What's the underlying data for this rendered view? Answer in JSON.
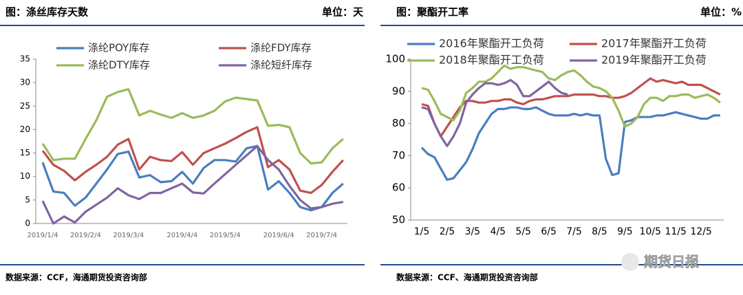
{
  "chart_data": [
    {
      "type": "line",
      "title": "图：涤丝库存天数",
      "unit": "单位：天",
      "source": "数据来源：CCF，海通期货投资咨询部",
      "categories": [
        "2019/1/4",
        null,
        null,
        null,
        "2019/2/4",
        null,
        null,
        null,
        "2019/3/4",
        null,
        null,
        null,
        null,
        "2019/4/4",
        null,
        null,
        null,
        "2019/5/4",
        null,
        null,
        null,
        null,
        "2019/6/4",
        null,
        null,
        null,
        "2019/7/4",
        null,
        null
      ],
      "ylim": [
        0,
        35
      ],
      "yticks": [
        0,
        5,
        10,
        15,
        20,
        25,
        30,
        35
      ],
      "series": [
        {
          "name": "涤纶POY库存",
          "color": "#4a7ebf",
          "values": [
            13,
            6.8,
            6.5,
            3.8,
            5.5,
            8.5,
            11.5,
            14.8,
            15.3,
            9.8,
            10.3,
            8.8,
            9.0,
            11,
            8.5,
            11.8,
            13.5,
            13.5,
            13.2,
            16,
            16.5,
            7.2,
            9,
            6.5,
            3.5,
            2.8,
            3.5,
            6.5,
            8.5
          ]
        },
        {
          "name": "涤纶FDY库存",
          "color": "#c0504d",
          "values": [
            15.5,
            12.5,
            11.2,
            9.2,
            11,
            12.5,
            14.2,
            16.8,
            18,
            11.5,
            14.2,
            13.5,
            13.3,
            15.2,
            12.5,
            15,
            16,
            17,
            18.2,
            19.5,
            20.5,
            12,
            13.5,
            11.5,
            7,
            6.5,
            8.2,
            11,
            13.5
          ]
        },
        {
          "name": "涤纶DTY库存",
          "color": "#9bbb59",
          "values": [
            17,
            13.5,
            13.8,
            13.8,
            18,
            22,
            27,
            28,
            28.6,
            23,
            24,
            23.2,
            22.5,
            23.5,
            22.5,
            23,
            24,
            26,
            26.8,
            26.5,
            26.2,
            20.8,
            21,
            20.5,
            15,
            12.8,
            13,
            16,
            18
          ]
        },
        {
          "name": "涤纶短纤库存",
          "color": "#8064a2",
          "values": [
            4.8,
            0,
            1.5,
            0.2,
            2.5,
            4,
            5.5,
            7.5,
            6,
            5.2,
            6.5,
            6.5,
            7.5,
            8.5,
            6.6,
            6.4,
            8.5,
            10.5,
            12.5,
            14.5,
            16.5,
            13.5,
            11.5,
            8,
            5,
            3.2,
            3.5,
            4.2,
            4.6
          ]
        }
      ]
    },
    {
      "type": "line",
      "title": "图：聚酯开工率",
      "unit": "单位：%",
      "source": "数据来源：CCF、海通期货投资咨询部",
      "categories": [
        "1/5",
        null,
        null,
        null,
        "2/5",
        null,
        null,
        null,
        "3/5",
        null,
        null,
        null,
        "4/5",
        null,
        null,
        null,
        "5/5",
        null,
        null,
        null,
        "6/5",
        null,
        null,
        null,
        "7/5",
        null,
        null,
        null,
        "8/5",
        null,
        null,
        null,
        "9/5",
        null,
        null,
        null,
        "10/5",
        null,
        null,
        null,
        "11/5",
        null,
        null,
        null,
        "12/5",
        null,
        null,
        null
      ],
      "ylim": [
        50,
        100
      ],
      "yticks": [
        50,
        60,
        70,
        80,
        90,
        100
      ],
      "series": [
        {
          "name": "2016年聚酯开工负荷",
          "color": "#4a7ebf",
          "values": [
            72.5,
            70.5,
            69.5,
            66,
            62.5,
            63,
            65.5,
            68,
            72,
            77,
            80,
            83,
            84.5,
            84.5,
            85,
            85,
            84.5,
            84.5,
            85,
            84,
            83,
            82.5,
            82.5,
            82.5,
            83,
            82.5,
            83,
            82.5,
            82.5,
            69,
            64,
            64.5,
            80.5,
            81,
            82,
            82,
            82,
            82.5,
            82.5,
            83,
            83.5,
            83,
            82.5,
            82,
            81.5,
            81.5,
            82.5,
            82.5
          ]
        },
        {
          "name": "2017年聚酯开工负荷",
          "color": "#c0504d",
          "values": [
            86,
            85.5,
            80,
            76,
            79,
            82,
            85,
            87,
            87,
            86.5,
            86.5,
            87,
            87,
            87.5,
            87.5,
            86.5,
            86,
            87,
            87.5,
            87.5,
            88,
            88.5,
            88.5,
            88.5,
            89,
            89,
            89,
            89,
            88.5,
            88.5,
            88,
            88,
            88.5,
            89.5,
            91,
            92.5,
            94,
            93,
            93.5,
            93,
            92.5,
            93,
            92,
            92,
            92,
            91,
            90,
            89
          ]
        },
        {
          "name": "2018年聚酯开工负荷",
          "color": "#9bbb59",
          "values": [
            91,
            90.5,
            87,
            83,
            82,
            81,
            84,
            89.5,
            91,
            93,
            93,
            94,
            96,
            98,
            97,
            97.5,
            97.5,
            97,
            96.5,
            96,
            94,
            93.5,
            95,
            96,
            96.5,
            95,
            93,
            91.5,
            91,
            90,
            88,
            84,
            79,
            80,
            82,
            86,
            88,
            88,
            87,
            88.5,
            88.5,
            89,
            89,
            88,
            88.5,
            89,
            88,
            86.5
          ]
        },
        {
          "name": "2019年聚酯开工负荷",
          "color": "#8064a2",
          "values": [
            85,
            84.5,
            80,
            76,
            73,
            76,
            80,
            86.5,
            89,
            91,
            92.5,
            92.5,
            92,
            92.5,
            93.5,
            92,
            88.5,
            88.5,
            90,
            91.5,
            93,
            91,
            89.5,
            89,
            null,
            null,
            null,
            null,
            null,
            null,
            null,
            null,
            null,
            null,
            null,
            null,
            null,
            null,
            null,
            null,
            null,
            null,
            null,
            null,
            null,
            null,
            null,
            null
          ]
        }
      ]
    }
  ],
  "watermark": "期货日报"
}
